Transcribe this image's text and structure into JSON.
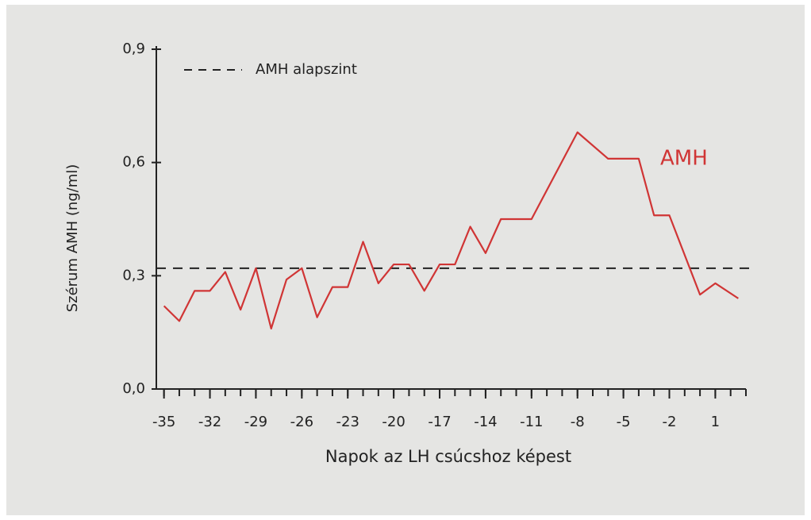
{
  "chart_data": {
    "type": "line",
    "y_label": "Szérum AMH (ng/ml)",
    "x_label": "Napok az LH csúcshoz képest",
    "x": [
      -35,
      -34,
      -33,
      -32,
      -31,
      -30,
      -29,
      -28,
      -27,
      -26,
      -25,
      -24,
      -23,
      -22,
      -21,
      -20,
      -19,
      -18,
      -17,
      -16,
      -15,
      -14,
      -13,
      -12,
      -11,
      -8,
      -6,
      -4,
      -3,
      -2,
      0,
      1,
      2.5
    ],
    "series": [
      {
        "name": "AMH",
        "color": "#d03535",
        "values": [
          0.22,
          0.18,
          0.26,
          0.26,
          0.31,
          0.21,
          0.32,
          0.16,
          0.29,
          0.32,
          0.19,
          0.27,
          0.27,
          0.39,
          0.28,
          0.33,
          0.33,
          0.26,
          0.33,
          0.33,
          0.43,
          0.36,
          0.45,
          0.45,
          0.45,
          0.68,
          0.61,
          0.61,
          0.46,
          0.46,
          0.25,
          0.28,
          0.24
        ]
      }
    ],
    "baseline": {
      "label": "AMH alapszint",
      "value": 0.32
    },
    "xlim": [
      -35.5,
      3
    ],
    "xticks": [
      -35,
      -32,
      -29,
      -26,
      -23,
      -20,
      -17,
      -14,
      -11,
      -8,
      -5,
      -2,
      1
    ],
    "ylim": [
      0,
      0.9
    ],
    "yticks": [
      {
        "value": 0,
        "label": "0,0"
      },
      {
        "value": 0.3,
        "label": "0,3"
      },
      {
        "value": 0.6,
        "label": "0,6"
      },
      {
        "value": 0.9,
        "label": "0,9"
      }
    ]
  }
}
